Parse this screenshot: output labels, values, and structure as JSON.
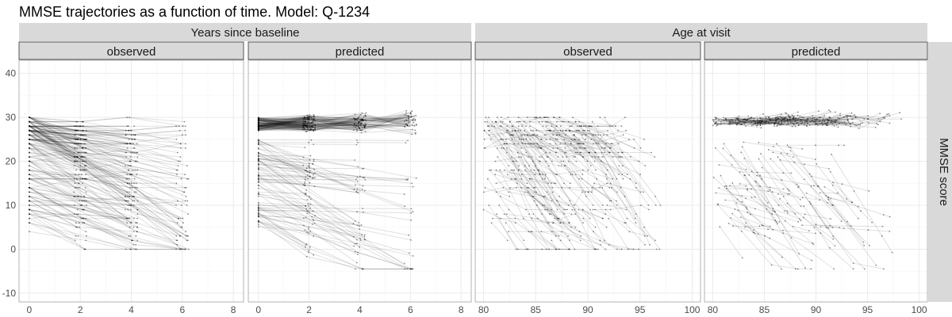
{
  "title": "MMSE trajectories as a function of time. Model: Q-1234",
  "right_strip_label": "MMSE score",
  "chart_data": {
    "type": "line",
    "facet_columns": [
      {
        "label": "Years since baseline",
        "panels": [
          "observed",
          "predicted"
        ]
      },
      {
        "label": "Age at visit",
        "panels": [
          "observed",
          "predicted"
        ]
      }
    ],
    "y_axis": {
      "range": [
        -12,
        43
      ],
      "ticks": [
        -10,
        0,
        10,
        20,
        30,
        40
      ]
    },
    "x_axes": {
      "years": {
        "range": [
          -0.4,
          8.4
        ],
        "ticks": [
          0,
          2,
          4,
          6,
          8
        ]
      },
      "age": {
        "range": [
          79.2,
          100.8
        ],
        "ticks": [
          80,
          85,
          90,
          95,
          100
        ]
      }
    },
    "series_summary": {
      "years_observed": {
        "x_visits": [
          0,
          2,
          4,
          6
        ],
        "y_range": [
          0,
          30
        ],
        "note_trend": "declining / flat"
      },
      "years_predicted": {
        "x_visits": [
          0,
          2,
          4,
          6
        ],
        "y_range": [
          -4,
          31
        ]
      },
      "age_observed": {
        "x_range": [
          80,
          98
        ],
        "y_range": [
          0,
          30
        ]
      },
      "age_predicted": {
        "x_range": [
          80,
          98
        ],
        "y_range": [
          -4,
          32
        ]
      }
    },
    "line_color": "#000000",
    "grid": true
  }
}
